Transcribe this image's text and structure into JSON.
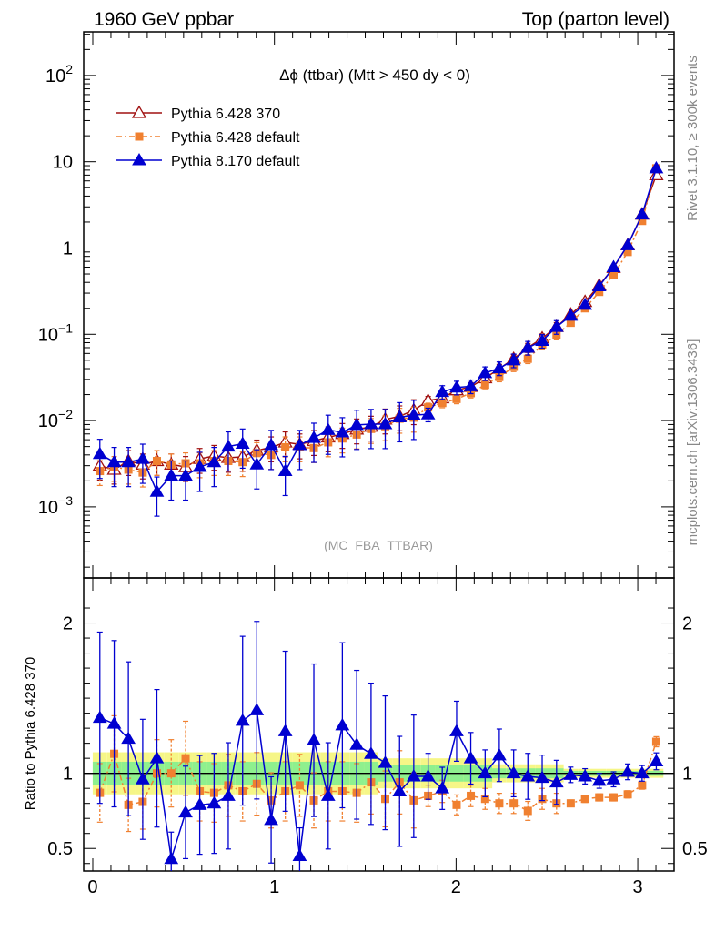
{
  "header": {
    "left": "1960 GeV ppbar",
    "right": "Top (parton level)"
  },
  "side_text": {
    "rivet": "Rivet 3.1.10, ≥ 300k events",
    "mcplots": "mcplots.cern.ch [arXiv:1306.3436]"
  },
  "chart_data": [
    {
      "type": "line",
      "panel": "main",
      "title": "Δϕ (ttbar) (Mtt > 450 dy < 0)",
      "watermark": "(MC_FBA_TTBAR)",
      "yscale": "log",
      "xlim": [
        -0.05,
        3.2
      ],
      "ylim": [
        0.00015,
        320
      ],
      "x_ticks": [
        "0",
        "1",
        "2",
        "3"
      ],
      "y_ticks": [
        "10^-3",
        "10^-2",
        "10^-1",
        "1",
        "10",
        "10^2"
      ],
      "legend_position": "top-left",
      "x": [
        0.039,
        0.118,
        0.196,
        0.275,
        0.353,
        0.432,
        0.511,
        0.589,
        0.668,
        0.746,
        0.825,
        0.903,
        0.982,
        1.06,
        1.139,
        1.217,
        1.296,
        1.374,
        1.453,
        1.532,
        1.61,
        1.689,
        1.767,
        1.846,
        1.924,
        2.003,
        2.081,
        2.16,
        2.238,
        2.317,
        2.395,
        2.474,
        2.553,
        2.631,
        2.71,
        2.788,
        2.867,
        2.945,
        3.024,
        3.102
      ],
      "series": [
        {
          "name": "Pythia 6.428 370",
          "color": "#a01010",
          "marker": "open-triangle",
          "values": [
            0.003,
            0.0027,
            0.0034,
            0.0031,
            0.0034,
            0.0031,
            0.0029,
            0.0036,
            0.0039,
            0.0037,
            0.0038,
            0.0045,
            0.0049,
            0.0056,
            0.0053,
            0.0058,
            0.0064,
            0.007,
            0.0079,
            0.0085,
            0.0103,
            0.0112,
            0.0132,
            0.017,
            0.0182,
            0.0225,
            0.0246,
            0.031,
            0.04,
            0.052,
            0.07,
            0.09,
            0.122,
            0.17,
            0.238,
            0.37,
            0.59,
            1.08,
            2.45,
            7.0
          ]
        },
        {
          "name": "Pythia 6.428 default",
          "color": "#f08030",
          "marker": "filled-square",
          "values": [
            0.0026,
            0.0029,
            0.0027,
            0.0025,
            0.0034,
            0.0031,
            0.0032,
            0.0032,
            0.0034,
            0.0034,
            0.0033,
            0.0042,
            0.004,
            0.0049,
            0.0049,
            0.0048,
            0.0056,
            0.0062,
            0.0069,
            0.008,
            0.0086,
            0.0105,
            0.0108,
            0.0142,
            0.016,
            0.0178,
            0.0208,
            0.026,
            0.032,
            0.042,
            0.052,
            0.075,
            0.098,
            0.136,
            0.2,
            0.31,
            0.49,
            0.9,
            2.06,
            8.4
          ]
        },
        {
          "name": "Pythia 8.170 default",
          "color": "#0000d0",
          "marker": "filled-triangle",
          "values": [
            0.0041,
            0.0033,
            0.0033,
            0.0036,
            0.0015,
            0.0023,
            0.0023,
            0.0029,
            0.0033,
            0.005,
            0.0054,
            0.0031,
            0.0052,
            0.0026,
            0.0052,
            0.0063,
            0.0078,
            0.0073,
            0.0089,
            0.0091,
            0.0091,
            0.0109,
            0.0116,
            0.0118,
            0.0215,
            0.0242,
            0.025,
            0.0355,
            0.0405,
            0.05,
            0.07,
            0.084,
            0.122,
            0.164,
            0.22,
            0.36,
            0.6,
            1.08,
            2.45,
            8.4
          ]
        }
      ]
    },
    {
      "type": "line",
      "panel": "ratio",
      "ylabel": "Ratio to Pythia 6.428 370",
      "ylim": [
        0.35,
        2.3
      ],
      "y_ticks": [
        "0.5",
        "1",
        "2"
      ],
      "x": [
        0.039,
        0.118,
        0.196,
        0.275,
        0.353,
        0.432,
        0.511,
        0.589,
        0.668,
        0.746,
        0.825,
        0.903,
        0.982,
        1.06,
        1.139,
        1.217,
        1.296,
        1.374,
        1.453,
        1.532,
        1.61,
        1.689,
        1.767,
        1.846,
        1.924,
        2.003,
        2.081,
        2.16,
        2.238,
        2.317,
        2.395,
        2.474,
        2.553,
        2.631,
        2.71,
        2.788,
        2.867,
        2.945,
        3.024,
        3.102
      ],
      "series": [
        {
          "name": "Pythia 6.428 default",
          "color": "#f08030",
          "values": [
            0.87,
            1.13,
            0.79,
            0.81,
            1.0,
            1.0,
            1.1,
            0.88,
            0.87,
            0.92,
            0.88,
            0.93,
            0.82,
            0.88,
            0.92,
            0.82,
            0.88,
            0.88,
            0.87,
            0.94,
            0.83,
            0.94,
            0.82,
            0.85,
            0.88,
            0.79,
            0.85,
            0.83,
            0.8,
            0.8,
            0.75,
            0.83,
            0.8,
            0.8,
            0.83,
            0.84,
            0.84,
            0.86,
            0.92,
            1.21
          ]
        },
        {
          "name": "Pythia 8.170 default",
          "color": "#0000d0",
          "values": [
            1.37,
            1.33,
            1.23,
            0.96,
            1.1,
            0.43,
            0.74,
            0.79,
            0.8,
            0.85,
            1.35,
            1.42,
            0.69,
            1.28,
            0.45,
            1.22,
            0.85,
            1.32,
            1.19,
            1.13,
            1.07,
            0.88,
            0.98,
            0.98,
            0.9,
            1.28,
            1.1,
            1.0,
            1.12,
            1.0,
            0.98,
            0.97,
            0.94,
            0.99,
            0.98,
            0.95,
            0.96,
            1.01,
            1.0,
            1.08
          ]
        }
      ]
    }
  ]
}
